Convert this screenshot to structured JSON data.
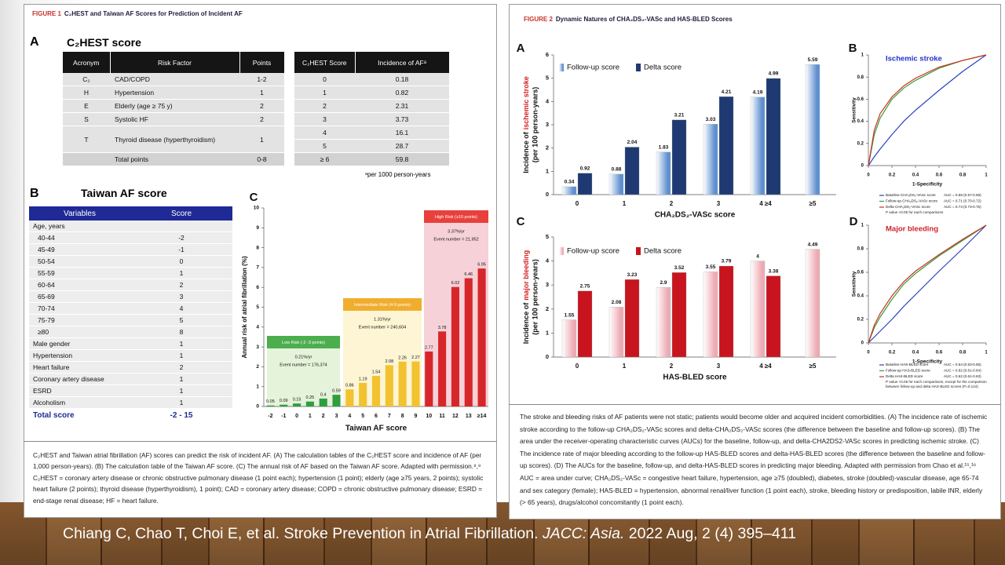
{
  "figure1": {
    "label": "FIGURE 1",
    "title": "C₂HEST and Taiwan AF Scores for Prediction of Incident AF",
    "panel_a": {
      "letter": "A",
      "title": "C₂HEST score",
      "risk_table": {
        "header": [
          "Acronym",
          "Risk Factor",
          "Points"
        ],
        "rows": [
          [
            "C₂",
            "CAD/COPD",
            "1-2"
          ],
          [
            "H",
            "Hypertension",
            "1"
          ],
          [
            "E",
            "Elderly (age ≥ 75 y)",
            "2"
          ],
          [
            "S",
            "Systolic HF",
            "2"
          ],
          [
            "T",
            "Thyroid disease (hyperthyroidism)",
            "1"
          ]
        ],
        "total": [
          "Total points",
          "0-8"
        ]
      },
      "incidence_table": {
        "header": [
          "C₂HEST Score",
          "Incidence of AFᵃ"
        ],
        "rows": [
          [
            "0",
            "0.18"
          ],
          [
            "1",
            "0.82"
          ],
          [
            "2",
            "2.31"
          ],
          [
            "3",
            "3.73"
          ],
          [
            "4",
            "16.1"
          ],
          [
            "5",
            "28.7"
          ],
          [
            "≥ 6",
            "59.8"
          ]
        ]
      },
      "footnote": "ᵃper 1000 person-years"
    },
    "panel_b": {
      "letter": "B",
      "title": "Taiwan AF score",
      "table": {
        "header": [
          "Variables",
          "Score"
        ],
        "age_group": {
          "label": "Age, years",
          "rows": [
            [
              "40-44",
              "-2"
            ],
            [
              "45-49",
              "-1"
            ],
            [
              "50-54",
              "0"
            ],
            [
              "55-59",
              "1"
            ],
            [
              "60-64",
              "2"
            ],
            [
              "65-69",
              "3"
            ],
            [
              "70-74",
              "4"
            ],
            [
              "75-79",
              "5"
            ],
            [
              "≥80",
              "8"
            ]
          ]
        },
        "rows": [
          [
            "Male gender",
            "1"
          ],
          [
            "Hypertension",
            "1"
          ],
          [
            "Heart failure",
            "2"
          ],
          [
            "Coronary artery disease",
            "1"
          ],
          [
            "ESRD",
            "1"
          ],
          [
            "Alcoholism",
            "1"
          ]
        ],
        "total": [
          "Total score",
          "-2 - 15"
        ]
      }
    },
    "caption": "C₂HEST and Taiwan atrial fibrillation (AF) scores can predict the risk of incident AF. (A) The calculation tables of the C₂HEST score and incidence of AF (per 1,000 person-years). (B) The calculation table of the Taiwan AF score. (C) The annual risk of AF based on the Taiwan AF score. Adapted with permission.⁸,⁹ C₂HEST = coronary artery disease or chronic obstructive pulmonary disease (1 point each); hypertension (1 point); elderly (age ≥75 years, 2 points); systolic heart failure (2 points); thyroid disease (hyperthyroidism), 1 point); CAD = coronary artery disease; COPD = chronic obstructive pulmonary disease; ESRD = end-stage renal disease; HF = heart failure."
  },
  "figure2": {
    "label": "FIGURE 2",
    "title": "Dynamic Natures of CHA₂DS₂-VASc and HAS-BLED Scores",
    "caption": "The stroke and bleeding risks of AF patients were not static; patients would become older and acquired incident comorbidities. (A) The incidence rate of ischemic stroke according to the follow-up CHA₂DS₂-VASc scores and delta-CHA₂DS₂-VASc scores (the difference between the baseline and follow-up scores). (B) The area under the receiver-operating characteristic curves (AUCs) for the baseline, follow-up, and delta-CHA2DS2-VASc scores in predicting ischemic stroke. (C) The incidence rate of major bleeding according to the follow-up HAS-BLED scores and delta-HAS-BLED scores (the difference between the baseline and follow-up scores). (D) The AUCs for the baseline, follow-up, and delta-HAS-BLED scores in predicting major bleeding. Adapted with permission from Chao et al.¹⁵,¹⁶ AUC = area under curve; CHA₂DS₂-VASc = congestive heart failure, hypertension, age ≥75 (doubled), diabetes, stroke (doubled)-vascular disease, age 65-74 and sex category (female); HAS-BLED = hypertension, abnormal renal/liver function (1 point each), stroke, bleeding history or predisposition, labile INR, elderly (> 65 years), drugs/alcohol concomitantly (1 point each)."
  },
  "chart_data": [
    {
      "type": "bar",
      "panel": "C",
      "xlabel": "Taiwan AF score",
      "ylabel": "Annual risk of atrial fibrillation (%)",
      "categories": [
        "-2",
        "-1",
        "0",
        "1",
        "2",
        "3",
        "4",
        "5",
        "6",
        "7",
        "8",
        "9",
        "10",
        "11",
        "12",
        "13",
        "≥14"
      ],
      "values": [
        0.05,
        0.09,
        0.15,
        0.25,
        0.4,
        0.59,
        0.86,
        1.19,
        1.54,
        2.08,
        2.26,
        2.27,
        2.77,
        3.78,
        6.02,
        6.46,
        6.95
      ],
      "colors": [
        "#2f9e3f",
        "#2f9e3f",
        "#2f9e3f",
        "#2f9e3f",
        "#2f9e3f",
        "#2f9e3f",
        "#f2c230",
        "#f2c230",
        "#f2c230",
        "#f2c230",
        "#f2c230",
        "#f2c230",
        "#d7262a",
        "#d7262a",
        "#d7262a",
        "#d7262a",
        "#d7262a"
      ],
      "ylim": [
        0,
        10
      ],
      "yticks": [
        0,
        1,
        2,
        3,
        4,
        5,
        6,
        7,
        8,
        9,
        10
      ],
      "annotations": [
        {
          "title": "Low Risk (-2 -3 points)",
          "rate": "0.21%/yr",
          "events": "Event number = 176,374"
        },
        {
          "title": "Intermediate Risk (4-9 points)",
          "rate": "1.31%/yr",
          "events": "Event number = 240,604"
        },
        {
          "title": "High Risk (≥10 points)",
          "rate": "3.37%/yr",
          "events": "Event number = 21,952"
        }
      ]
    },
    {
      "type": "grouped_bar",
      "panel": "A",
      "xlabel": "CHA₂DS₂-VASc score",
      "ylabel": {
        "prefix": "Incidence of",
        "highlight": "ischemic stroke",
        "suffix": "(per 100 person-years)"
      },
      "categories": [
        "0",
        "1",
        "2",
        "3",
        "4 ≥4",
        "≥5"
      ],
      "ylim": [
        0,
        6
      ],
      "yticks": [
        0,
        1,
        2,
        3,
        4,
        5,
        6
      ],
      "series": [
        {
          "name": "Follow-up score",
          "color": "#5f8fd0",
          "values": [
            0.34,
            0.88,
            1.83,
            3.03,
            4.19,
            5.59
          ]
        },
        {
          "name": "Delta score",
          "color": "#1f3a72",
          "values": [
            0.92,
            2.04,
            3.21,
            4.21,
            4.99,
            null
          ]
        }
      ]
    },
    {
      "type": "line",
      "panel": "B",
      "title": "Ischemic stroke",
      "title_color": "#2432c8",
      "xlabel": "1-Specificity",
      "ylabel": "Sensitivity",
      "x": [
        0,
        0.05,
        0.1,
        0.2,
        0.3,
        0.4,
        0.6,
        0.8,
        1
      ],
      "xlim": [
        0,
        1
      ],
      "ylim": [
        0,
        1
      ],
      "xticks": [
        0,
        0.2,
        0.4,
        0.6,
        0.8,
        1
      ],
      "yticks": [
        0,
        0.2,
        0.4,
        0.6,
        0.8,
        1
      ],
      "series": [
        {
          "name": "Baseline CHA₂DS₂-VASc score",
          "auc": "AUC = 0.58 (0.57-0.59)",
          "color": "#2b3fc4",
          "values": [
            0,
            0.08,
            0.15,
            0.28,
            0.4,
            0.5,
            0.68,
            0.85,
            1
          ]
        },
        {
          "name": "Follow-up CHA₂DS₂-VASc score",
          "auc": "AUC = 0.71 (0.70-0.72)",
          "color": "#3b9a3b",
          "values": [
            0,
            0.28,
            0.43,
            0.6,
            0.7,
            0.77,
            0.88,
            0.95,
            1
          ]
        },
        {
          "name": "Delta CHA₂DS₂-VASc score",
          "auc": "AUC = 0.74 (0.73-0.75)",
          "color": "#c8321e",
          "values": [
            0,
            0.32,
            0.47,
            0.62,
            0.72,
            0.79,
            0.89,
            0.95,
            1
          ]
        }
      ],
      "note": "P value <0.05 for each comparisons"
    },
    {
      "type": "grouped_bar",
      "panel": "C",
      "xlabel": "HAS-BLED score",
      "ylabel": {
        "prefix": "Incidence of",
        "highlight": "major bleeding",
        "suffix": "(per 100 person-years)"
      },
      "categories": [
        "0",
        "1",
        "2",
        "3",
        "4 ≥4",
        "≥5"
      ],
      "ylim": [
        0,
        5
      ],
      "yticks": [
        0,
        1,
        2,
        3,
        4,
        5
      ],
      "series": [
        {
          "name": "Follow-up score",
          "color": "#eeaab4",
          "values": [
            1.55,
            2.08,
            2.9,
            3.55,
            4,
            4.49
          ]
        },
        {
          "name": "Delta score",
          "color": "#c8141e",
          "values": [
            2.75,
            3.23,
            3.52,
            3.79,
            3.38,
            null
          ]
        }
      ]
    },
    {
      "type": "line",
      "panel": "D",
      "title": "Major bleeding",
      "title_color": "#d0202a",
      "xlabel": "1-Specificity",
      "ylabel": "Sensitivity",
      "x": [
        0,
        0.05,
        0.1,
        0.2,
        0.3,
        0.4,
        0.6,
        0.8,
        1
      ],
      "xlim": [
        0,
        1
      ],
      "ylim": [
        0,
        1
      ],
      "xticks": [
        0,
        0.2,
        0.4,
        0.6,
        0.8,
        1
      ],
      "yticks": [
        0,
        0.2,
        0.4,
        0.6,
        0.8,
        1
      ],
      "series": [
        {
          "name": "Baseline HAS-BLED score",
          "auc": "AUC = 0.54 (0.53-0.55)",
          "color": "#2b3fc4",
          "values": [
            0,
            0.05,
            0.1,
            0.2,
            0.31,
            0.41,
            0.61,
            0.8,
            1
          ]
        },
        {
          "name": "Follow-up HAS-BLED score",
          "auc": "AUC = 0.62 (0.61-0.64)",
          "color": "#3b9a3b",
          "values": [
            0,
            0.13,
            0.22,
            0.37,
            0.5,
            0.59,
            0.74,
            0.87,
            1
          ]
        },
        {
          "name": "Delta HAS-BLED score",
          "auc": "AUC = 0.62 (0.61-0.63)",
          "color": "#c8321e",
          "values": [
            0,
            0.15,
            0.25,
            0.4,
            0.52,
            0.61,
            0.75,
            0.88,
            1
          ]
        }
      ],
      "note": "P value <0.05 for each comparisons, except for the comparison between follow-up and delta HAS-BLED scores (P=0.124)"
    }
  ],
  "citation": {
    "text": "Chiang C, Chao T, Choi E, et al. Stroke Prevention in Atrial Fibrillation.",
    "journal": "JACC: Asia.",
    "details": "2022 Aug, 2 (4) 395–411"
  }
}
